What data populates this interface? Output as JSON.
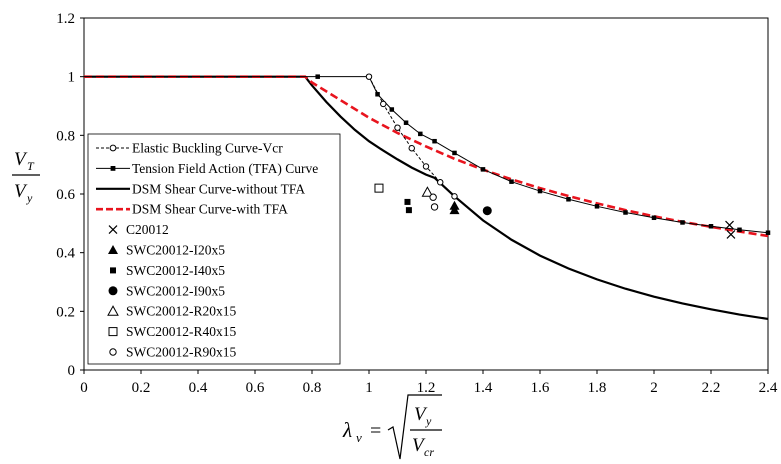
{
  "chart_data": {
    "type": "line",
    "title": "",
    "xlim": [
      0,
      2.4
    ],
    "ylim": [
      0,
      1.2
    ],
    "x_ticks": [
      "0",
      "0.2",
      "0.4",
      "0.6",
      "0.8",
      "1",
      "1.2",
      "1.4",
      "1.6",
      "1.8",
      "2",
      "2.2",
      "2.4"
    ],
    "y_ticks": [
      "0",
      "0.2",
      "0.4",
      "0.6",
      "0.8",
      "1",
      "1.2"
    ],
    "ylabel": {
      "num_main": "V",
      "num_sub": "T",
      "den_main": "V",
      "den_sub": "y"
    },
    "xlabel": {
      "lhs_main": "λ",
      "lhs_sub": "v",
      "eq": "=",
      "num_main": "V",
      "num_sub": "y",
      "den_main": "V",
      "den_sub": "cr"
    },
    "legend_position": "left",
    "series": [
      {
        "name": "Elastic Buckling Curve-Vcr",
        "kind": "line",
        "color": "#000000",
        "dash": true,
        "marker": "open-circle",
        "x": [
          1.0,
          1.05,
          1.1,
          1.15,
          1.2,
          1.25,
          1.3
        ],
        "y": [
          1.0,
          0.907,
          0.826,
          0.756,
          0.694,
          0.64,
          0.592
        ]
      },
      {
        "name": "Tension Field Action (TFA) Curve",
        "kind": "line",
        "color": "#000000",
        "dash": false,
        "marker": "filled-square",
        "x": [
          0.0,
          0.82,
          1.0,
          1.03,
          1.08,
          1.13,
          1.18,
          1.23,
          1.3,
          1.4,
          1.5,
          1.6,
          1.7,
          1.8,
          1.9,
          2.0,
          2.1,
          2.2,
          2.3,
          2.4
        ],
        "y": [
          1.0,
          1.0,
          1.0,
          0.94,
          0.888,
          0.843,
          0.805,
          0.78,
          0.74,
          0.684,
          0.642,
          0.61,
          0.582,
          0.558,
          0.537,
          0.519,
          0.503,
          0.49,
          0.478,
          0.468
        ]
      },
      {
        "name": "DSM Shear Curve-without TFA",
        "kind": "line",
        "color": "#000000",
        "dash": false,
        "marker": "line",
        "x": [
          0.0,
          0.776,
          0.8,
          0.85,
          0.9,
          0.95,
          1.0,
          1.05,
          1.1,
          1.15,
          1.2,
          1.23,
          1.3,
          1.4,
          1.5,
          1.6,
          1.7,
          1.8,
          1.9,
          2.0,
          2.1,
          2.2,
          2.3,
          2.4
        ],
        "y": [
          1.0,
          1.0,
          0.97,
          0.914,
          0.864,
          0.819,
          0.78,
          0.748,
          0.718,
          0.69,
          0.666,
          0.655,
          0.592,
          0.51,
          0.444,
          0.39,
          0.346,
          0.309,
          0.277,
          0.25,
          0.227,
          0.207,
          0.189,
          0.174
        ]
      },
      {
        "name": "DSM Shear Curve-with TFA",
        "kind": "line",
        "color": "#e8141e",
        "dash": true,
        "marker": "line",
        "x": [
          0.0,
          0.776,
          0.8,
          0.9,
          1.0,
          1.1,
          1.2,
          1.3,
          1.4,
          1.5,
          1.6,
          1.7,
          1.8,
          1.9,
          2.0,
          2.1,
          2.2,
          2.3,
          2.4
        ],
        "y": [
          1.0,
          1.0,
          0.98,
          0.92,
          0.86,
          0.808,
          0.762,
          0.72,
          0.683,
          0.65,
          0.62,
          0.593,
          0.568,
          0.545,
          0.524,
          0.505,
          0.488,
          0.472,
          0.457
        ]
      },
      {
        "name": "C20012",
        "kind": "points",
        "marker": "x",
        "x": [
          2.265,
          2.27
        ],
        "y": [
          0.494,
          0.462
        ]
      },
      {
        "name": "SWC20012-I20x5",
        "kind": "points",
        "marker": "filled-triangle",
        "x": [
          1.3,
          1.3
        ],
        "y": [
          0.56,
          0.545
        ]
      },
      {
        "name": "SWC20012-I40x5",
        "kind": "points",
        "marker": "filled-square",
        "x": [
          1.135,
          1.14
        ],
        "y": [
          0.573,
          0.545
        ]
      },
      {
        "name": "SWC20012-I90x5",
        "kind": "points",
        "marker": "filled-circle",
        "x": [
          1.415
        ],
        "y": [
          0.543
        ]
      },
      {
        "name": "SWC20012-R20x15",
        "kind": "points",
        "marker": "open-triangle",
        "x": [
          1.205
        ],
        "y": [
          0.606
        ]
      },
      {
        "name": "SWC20012-R40x15",
        "kind": "points",
        "marker": "open-square",
        "x": [
          1.035
        ],
        "y": [
          0.62
        ]
      },
      {
        "name": "SWC20012-R90x15",
        "kind": "points",
        "marker": "open-circle",
        "x": [
          1.225,
          1.23
        ],
        "y": [
          0.589,
          0.556
        ]
      }
    ]
  }
}
